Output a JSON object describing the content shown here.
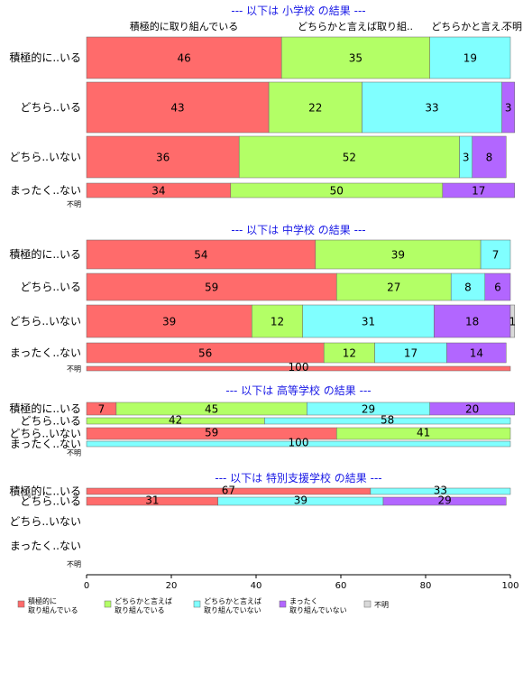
{
  "chart_data": {
    "type": "bar",
    "orientation": "horizontal",
    "stacked": true,
    "xlim": [
      0,
      100
    ],
    "xticks": [
      0,
      20,
      40,
      60,
      80,
      100
    ],
    "legend_position": "bottom",
    "column_headers": [
      "積極的に取り組んでいる",
      "どちらかと言えば取り組..",
      "どちらかと言え...",
      "不明"
    ],
    "series": [
      {
        "name": "積極的に\n取り組んでいる",
        "color": "#ff6b6b"
      },
      {
        "name": "どちらかと言えば\n取り組んでいる",
        "color": "#b3ff66"
      },
      {
        "name": "どちらかと言えば\n取り組んでいない",
        "color": "#80ffff"
      },
      {
        "name": "まったく\n取り組んでいない",
        "color": "#b266ff"
      },
      {
        "name": "不明",
        "color": "#d9d9d9"
      }
    ],
    "panels": [
      {
        "title": "--- 以下は 小学校 の結果 ---",
        "rows": [
          {
            "label": "積極的に..いる",
            "values": [
              46,
              35,
              19,
              0,
              0
            ],
            "labels": [
              "46",
              "35",
              "19",
              "",
              ""
            ]
          },
          {
            "label": "どちら..いる",
            "values": [
              43,
              22,
              33,
              3,
              0
            ],
            "labels": [
              "43",
              "22",
              "33",
              "3",
              ""
            ]
          },
          {
            "label": "どちら..いない",
            "values": [
              36,
              52,
              3,
              8,
              0
            ],
            "labels": [
              "36",
              "52",
              "3",
              "8",
              ""
            ]
          },
          {
            "label": "まったく..ない",
            "values": [
              34,
              50,
              0,
              17,
              0
            ],
            "labels": [
              "34",
              "50",
              "",
              "17",
              ""
            ]
          },
          {
            "label": "不明",
            "values": [
              0,
              0,
              0,
              0,
              0
            ],
            "labels": [
              "",
              "",
              "",
              "",
              ""
            ]
          }
        ]
      },
      {
        "title": "--- 以下は 中学校 の結果 ---",
        "rows": [
          {
            "label": "積極的に..いる",
            "values": [
              54,
              39,
              7,
              0,
              0
            ],
            "labels": [
              "54",
              "39",
              "7",
              "",
              ""
            ]
          },
          {
            "label": "どちら..いる",
            "values": [
              59,
              27,
              8,
              6,
              0
            ],
            "labels": [
              "59",
              "27",
              "8",
              "6",
              ""
            ]
          },
          {
            "label": "どちら..いない",
            "values": [
              39,
              12,
              31,
              18,
              1
            ],
            "labels": [
              "39",
              "12",
              "31",
              "18",
              "1"
            ]
          },
          {
            "label": "まったく..ない",
            "values": [
              56,
              12,
              17,
              14,
              0
            ],
            "labels": [
              "56",
              "12",
              "17",
              "14",
              ""
            ]
          },
          {
            "label": "不明",
            "values": [
              100,
              0,
              0,
              0,
              0
            ],
            "labels": [
              "100",
              "",
              "",
              "",
              ""
            ]
          }
        ]
      },
      {
        "title": "--- 以下は 高等学校 の結果 ---",
        "rows": [
          {
            "label": "積極的に..いる",
            "values": [
              7,
              45,
              29,
              20,
              0
            ],
            "labels": [
              "7",
              "45",
              "29",
              "20",
              ""
            ]
          },
          {
            "label": "どちら..いる",
            "values": [
              0,
              42,
              58,
              0,
              0
            ],
            "labels": [
              "",
              "42",
              "58",
              "",
              ""
            ]
          },
          {
            "label": "どちら..いない",
            "values": [
              59,
              41,
              0,
              0,
              0
            ],
            "labels": [
              "59",
              "41",
              "",
              "",
              ""
            ]
          },
          {
            "label": "まったく..ない",
            "values": [
              0,
              0,
              100,
              0,
              0
            ],
            "labels": [
              "",
              "",
              "100",
              "",
              ""
            ]
          },
          {
            "label": "不明",
            "values": [
              0,
              0,
              0,
              0,
              0
            ],
            "labels": [
              "",
              "",
              "",
              "",
              ""
            ]
          }
        ]
      },
      {
        "title": "--- 以下は 特別支援学校 の結果 ---",
        "rows": [
          {
            "label": "積極的に..いる",
            "values": [
              67,
              0,
              33,
              0,
              0
            ],
            "labels": [
              "67",
              "",
              "33",
              "",
              ""
            ]
          },
          {
            "label": "どちら..いる",
            "values": [
              31,
              0,
              39,
              29,
              0
            ],
            "labels": [
              "31",
              "",
              "39",
              "29",
              ""
            ]
          },
          {
            "label": "どちら..いない",
            "values": [
              0,
              0,
              0,
              0,
              0
            ],
            "labels": [
              "",
              "",
              "",
              "",
              ""
            ]
          },
          {
            "label": "まったく..ない",
            "values": [
              0,
              0,
              0,
              0,
              0
            ],
            "labels": [
              "",
              "",
              "",
              "",
              ""
            ]
          },
          {
            "label": "不明",
            "values": [
              0,
              0,
              0,
              0,
              0
            ],
            "labels": [
              "",
              "",
              "",
              "",
              ""
            ]
          }
        ]
      }
    ]
  }
}
